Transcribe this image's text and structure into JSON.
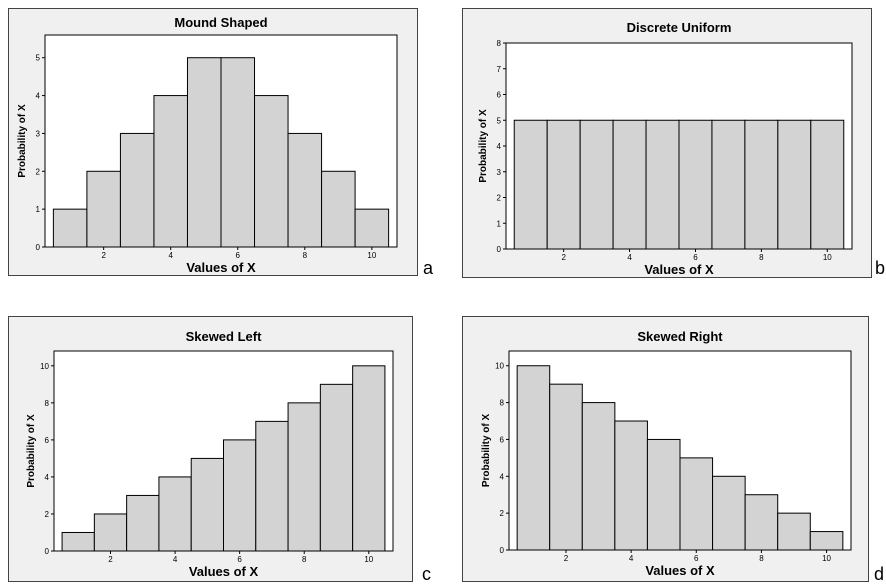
{
  "chart_data": [
    {
      "type": "bar",
      "title": "Mound Shaped",
      "xlabel": "Values of X",
      "ylabel": "Probability of X",
      "categories": [
        1,
        2,
        3,
        4,
        5,
        6,
        7,
        8,
        9,
        10
      ],
      "values": [
        1,
        2,
        3,
        4,
        5,
        5,
        4,
        3,
        2,
        1
      ],
      "xticks": [
        2,
        4,
        6,
        8,
        10
      ],
      "yticks": [
        0,
        1,
        2,
        3,
        4,
        5
      ],
      "ylim": [
        0,
        5.6
      ],
      "panel_label": "a"
    },
    {
      "type": "bar",
      "title": "Discrete Uniform",
      "xlabel": "Values of X",
      "ylabel": "Probability of X",
      "categories": [
        1,
        2,
        3,
        4,
        5,
        6,
        7,
        8,
        9,
        10
      ],
      "values": [
        5,
        5,
        5,
        5,
        5,
        5,
        5,
        5,
        5,
        5
      ],
      "xticks": [
        2,
        4,
        6,
        8,
        10
      ],
      "yticks": [
        0,
        1,
        2,
        3,
        4,
        5,
        6,
        7,
        8
      ],
      "ylim": [
        0,
        8
      ],
      "panel_label": "b"
    },
    {
      "type": "bar",
      "title": "Skewed Left",
      "xlabel": "Values of X",
      "ylabel": "Probability of X",
      "categories": [
        1,
        2,
        3,
        4,
        5,
        6,
        7,
        8,
        9,
        10
      ],
      "values": [
        1,
        2,
        3,
        4,
        5,
        6,
        7,
        8,
        9,
        10
      ],
      "xticks": [
        2,
        4,
        6,
        8,
        10
      ],
      "yticks": [
        0,
        2,
        4,
        6,
        8,
        10
      ],
      "ylim": [
        0,
        10.8
      ],
      "panel_label": "c"
    },
    {
      "type": "bar",
      "title": "Skewed Right",
      "xlabel": "Values of X",
      "ylabel": "Probability of X",
      "categories": [
        1,
        2,
        3,
        4,
        5,
        6,
        7,
        8,
        9,
        10
      ],
      "values": [
        10,
        9,
        8,
        7,
        6,
        5,
        4,
        3,
        2,
        1
      ],
      "xticks": [
        2,
        4,
        6,
        8,
        10
      ],
      "yticks": [
        0,
        2,
        4,
        6,
        8,
        10
      ],
      "ylim": [
        0,
        10.8
      ],
      "panel_label": "d"
    }
  ]
}
